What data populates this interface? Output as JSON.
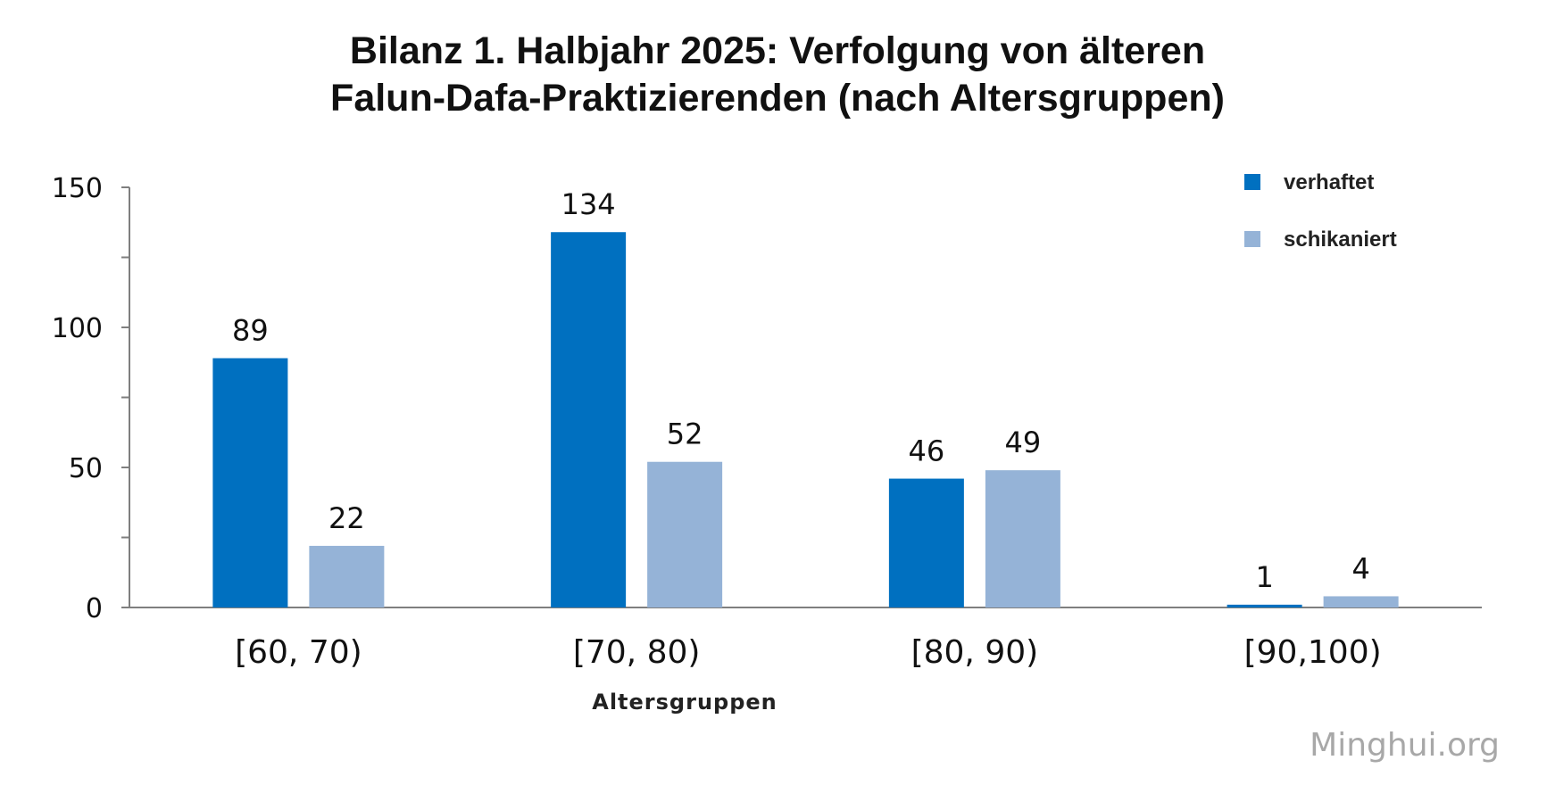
{
  "title_lines": [
    "Bilanz 1. Halbjahr 2025: Verfolgung von älteren",
    "Falun-Dafa-Praktizierenden (nach Altersgruppen)"
  ],
  "watermark": "Minghui.org",
  "chart_data": {
    "type": "bar",
    "title": "Bilanz 1. Halbjahr 2025: Verfolgung von älteren Falun-Dafa-Praktizierenden (nach Altersgruppen)",
    "xlabel": "Altersgruppen",
    "ylabel": "",
    "categories": [
      "[60, 70)",
      "[70, 80)",
      "[80, 90)",
      "[90,100)"
    ],
    "series": [
      {
        "name": "verhaftet",
        "values": [
          89,
          134,
          46,
          1
        ],
        "color": "#0070c0"
      },
      {
        "name": "schikaniert",
        "values": [
          22,
          52,
          49,
          4
        ],
        "color": "#95b3d7"
      }
    ],
    "ylim": [
      0,
      150
    ],
    "yticks": [
      0,
      50,
      100,
      150
    ],
    "ytick_labels": [
      "0",
      "50",
      "100",
      "150"
    ],
    "grid": false,
    "legend_position": "top-right",
    "data_labels": true
  }
}
